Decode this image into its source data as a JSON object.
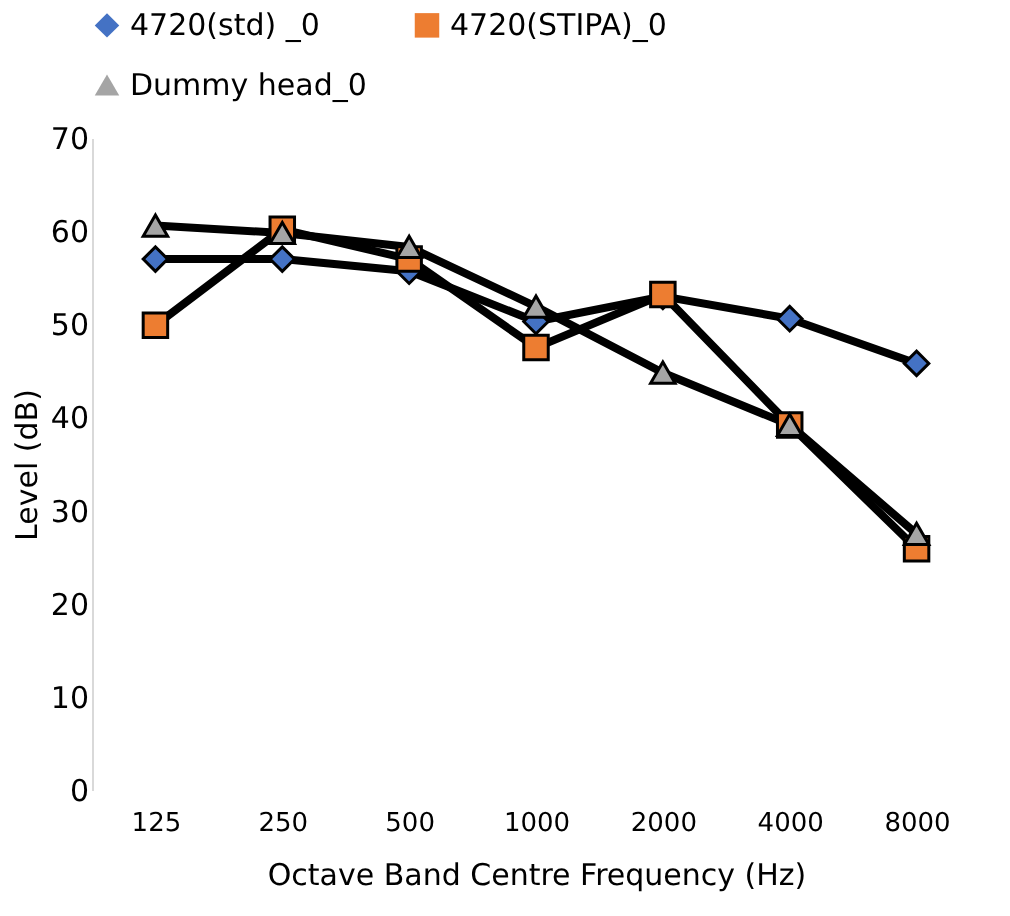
{
  "chart_data": {
    "type": "line",
    "xlabel": "Octave Band Centre Frequency (Hz)",
    "ylabel": "Level (dB)",
    "categories": [
      "125",
      "250",
      "500",
      "1000",
      "2000",
      "4000",
      "8000"
    ],
    "series": [
      {
        "name": "4720(std) _0",
        "color": "#4472c4",
        "marker": "diamond",
        "values": [
          57,
          57,
          55.7,
          50.3,
          53,
          50.6,
          45.8
        ]
      },
      {
        "name": "4720(STIPA)_0",
        "color": "#ed7d31",
        "marker": "square",
        "values": [
          49.9,
          60.2,
          57,
          47.5,
          53.2,
          39.2,
          25.9
        ]
      },
      {
        "name": "Dummy head_0",
        "color": "#a5a5a5",
        "marker": "triangle",
        "values": [
          60.6,
          59.8,
          58.3,
          51.9,
          44.8,
          39.2,
          27.5
        ]
      }
    ],
    "ylim": [
      0,
      70
    ],
    "yticks": [
      0,
      10,
      20,
      30,
      40,
      50,
      60,
      70
    ],
    "grid": false,
    "legend": "top",
    "line_style": "solid"
  }
}
